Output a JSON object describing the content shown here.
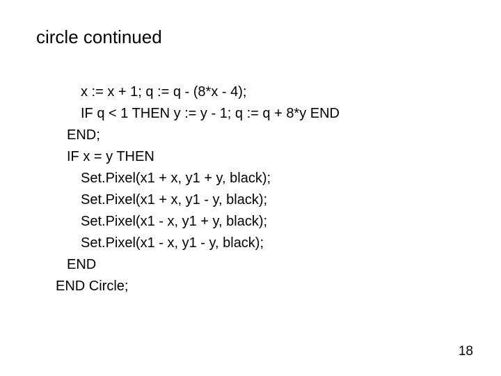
{
  "slide": {
    "title": "circle continued",
    "page_number": "18",
    "background_color": "#ffffff",
    "text_color": "#000000",
    "title_fontsize": 26,
    "body_fontsize": 20,
    "font_family": "Arial",
    "code_lines": [
      {
        "indent": 2,
        "text": "x := x + 1; q := q - (8*x - 4);"
      },
      {
        "indent": 2,
        "text": "IF q < 1 THEN y := y - 1; q := q + 8*y END"
      },
      {
        "indent": 1,
        "text": "END;"
      },
      {
        "indent": 1,
        "text": "IF x = y THEN"
      },
      {
        "indent": 2,
        "text": "Set.Pixel(x1 + x, y1 + y, black);"
      },
      {
        "indent": 2,
        "text": "Set.Pixel(x1 + x, y1 - y, black);"
      },
      {
        "indent": 2,
        "text": "Set.Pixel(x1 - x, y1 + y, black);"
      },
      {
        "indent": 2,
        "text": "Set.Pixel(x1 - x, y1 - y, black);"
      },
      {
        "indent": 1,
        "text": "END"
      },
      {
        "indent": 0,
        "text": "END Circle;"
      }
    ]
  }
}
